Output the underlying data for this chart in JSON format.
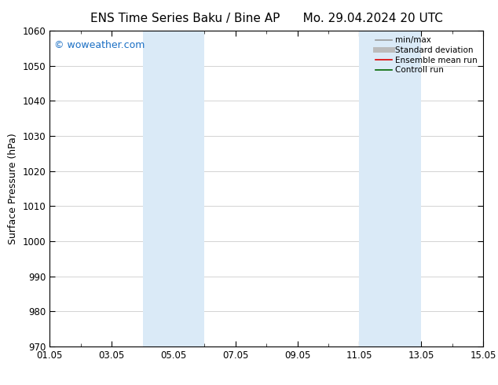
{
  "title_left": "ENS Time Series Baku / Bine AP",
  "title_right": "Mo. 29.04.2024 20 UTC",
  "ylabel": "Surface Pressure (hPa)",
  "xlim": [
    0,
    14
  ],
  "ylim": [
    970,
    1060
  ],
  "yticks": [
    970,
    980,
    990,
    1000,
    1010,
    1020,
    1030,
    1040,
    1050,
    1060
  ],
  "xtick_labels": [
    "01.05",
    "03.05",
    "05.05",
    "07.05",
    "09.05",
    "11.05",
    "13.05",
    "15.05"
  ],
  "xtick_positions": [
    0,
    2,
    4,
    6,
    8,
    10,
    12,
    14
  ],
  "shaded_bands": [
    {
      "x_start": 3.0,
      "x_end": 5.0,
      "color": "#daeaf7"
    },
    {
      "x_start": 10.0,
      "x_end": 12.0,
      "color": "#daeaf7"
    }
  ],
  "watermark_text": "© woweather.com",
  "watermark_color": "#1a6fc4",
  "legend_items": [
    {
      "label": "min/max",
      "color": "#999999",
      "lw": 1.2,
      "ls": "-"
    },
    {
      "label": "Standard deviation",
      "color": "#bbbbbb",
      "lw": 5,
      "ls": "-"
    },
    {
      "label": "Ensemble mean run",
      "color": "#dd0000",
      "lw": 1.2,
      "ls": "-"
    },
    {
      "label": "Controll run",
      "color": "#006600",
      "lw": 1.2,
      "ls": "-"
    }
  ],
  "background_color": "#ffffff",
  "grid_color": "#cccccc",
  "title_fontsize": 11,
  "axis_label_fontsize": 9,
  "tick_fontsize": 8.5,
  "watermark_fontsize": 9
}
